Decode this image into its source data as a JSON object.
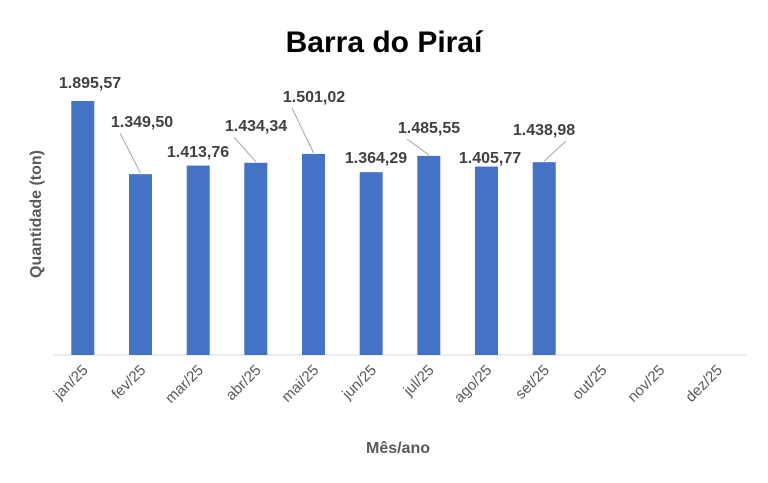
{
  "chart_data": {
    "type": "bar",
    "title": "Barra do Piraí",
    "xlabel": "Mês/ano",
    "ylabel": "Quantidade (ton)",
    "categories": [
      "jan/25",
      "fev/25",
      "mar/25",
      "abr/25",
      "mai/25",
      "jun/25",
      "jul/25",
      "ago/25",
      "set/25",
      "out/25",
      "nov/25",
      "dez/25"
    ],
    "values": [
      1895.57,
      1349.5,
      1413.76,
      1434.34,
      1501.02,
      1364.29,
      1485.55,
      1405.77,
      1438.98,
      null,
      null,
      null
    ],
    "data_labels": [
      "1.895,57",
      "1.349,50",
      "1.413,76",
      "1.434,34",
      "1.501,02",
      "1.364,29",
      "1.485,55",
      "1.405,77",
      "1.438,98",
      "",
      "",
      ""
    ],
    "ylim": [
      0,
      1895.57
    ],
    "y_axis_visible": false,
    "grid": false,
    "legend": "none",
    "bar_color": "#4472c4"
  }
}
